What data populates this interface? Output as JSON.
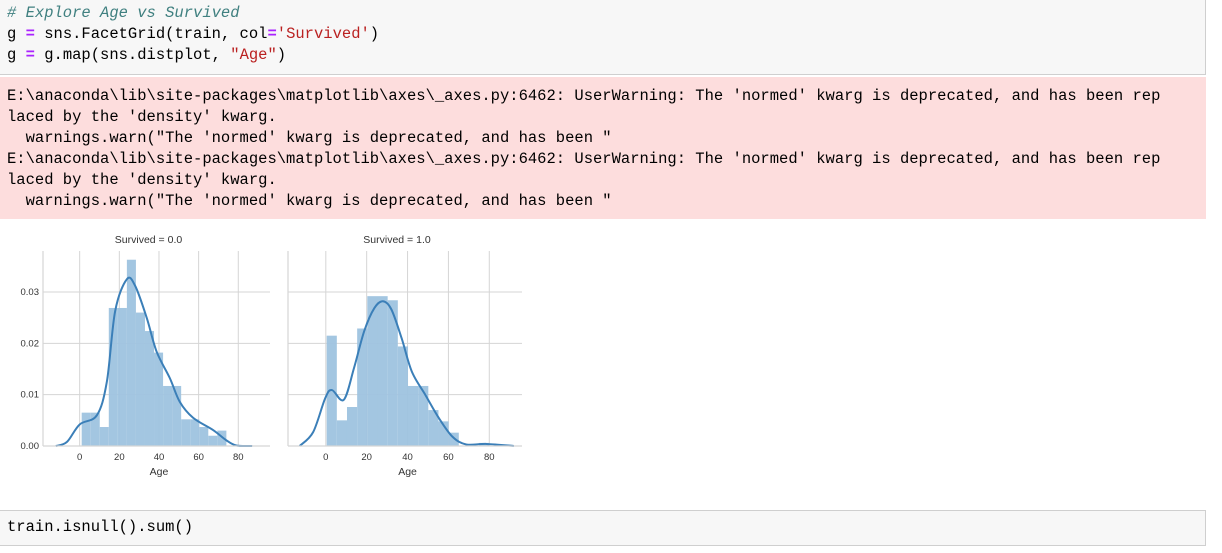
{
  "code_cell": {
    "comment": "# Explore Age vs Survived",
    "line2": {
      "a": "g ",
      "op": "=",
      "b": " sns.FacetGrid(train, col",
      "op2": "=",
      "str": "'Survived'",
      "c": ")"
    },
    "line3": {
      "a": "g ",
      "op": "=",
      "b": " g.map(sns.distplot, ",
      "str": "\"Age\"",
      "c": ")"
    }
  },
  "stderr": {
    "lines": [
      "E:\\anaconda\\lib\\site-packages\\matplotlib\\axes\\_axes.py:6462: UserWarning: The 'normed' kwarg is deprecated, and has been rep",
      "laced by the 'density' kwarg.",
      "  warnings.warn(\"The 'normed' kwarg is deprecated, and has been \"",
      "E:\\anaconda\\lib\\site-packages\\matplotlib\\axes\\_axes.py:6462: UserWarning: The 'normed' kwarg is deprecated, and has been rep",
      "laced by the 'density' kwarg.",
      "  warnings.warn(\"The 'normed' kwarg is deprecated, and has been \""
    ]
  },
  "next_cell": {
    "code": "train.isnull().sum()"
  },
  "colors": {
    "bar": "#9ec3df",
    "kde": "#3b7fb8",
    "grid": "#d5d5d5",
    "stderr_bg": "#fddddd"
  },
  "chart_data": [
    {
      "type": "bar",
      "title": "Survived = 0.0",
      "xlabel": "Age",
      "ylabel": "",
      "xticks": [
        0,
        20,
        40,
        60,
        80
      ],
      "yticks": [
        "0.00",
        "0.01",
        "0.02",
        "0.03"
      ],
      "xlim": [
        -18.5,
        96
      ],
      "ylim": [
        0,
        0.038
      ],
      "grid": true,
      "bin_range": [
        1,
        74
      ],
      "values": [
        0.0065,
        0.0065,
        0.0037,
        0.0269,
        0.0269,
        0.0363,
        0.026,
        0.0224,
        0.0182,
        0.0117,
        0.0117,
        0.0052,
        0.0052,
        0.0037,
        0.002,
        0.003
      ],
      "kde": [
        [
          -12,
          0
        ],
        [
          -6.4,
          0.0008
        ],
        [
          0,
          0.0042
        ],
        [
          8.7,
          0.006
        ],
        [
          13.7,
          0.0125
        ],
        [
          17.9,
          0.0263
        ],
        [
          23.8,
          0.0325
        ],
        [
          28,
          0.0312
        ],
        [
          33.8,
          0.025
        ],
        [
          38.8,
          0.0184
        ],
        [
          45.5,
          0.0132
        ],
        [
          50.5,
          0.0086
        ],
        [
          57.2,
          0.0055
        ],
        [
          67.3,
          0.0031
        ],
        [
          74,
          0.0011
        ],
        [
          79,
          0.0001
        ],
        [
          87,
          0
        ]
      ]
    },
    {
      "type": "bar",
      "title": "Survived = 1.0",
      "xlabel": "Age",
      "ylabel": "",
      "xticks": [
        0,
        20,
        40,
        60,
        80
      ],
      "xlim": [
        -18.5,
        96
      ],
      "ylim": [
        0,
        0.038
      ],
      "grid": true,
      "bin_range": [
        0.42,
        80
      ],
      "values": [
        0.0215,
        0.005,
        0.0076,
        0.0229,
        0.0292,
        0.0292,
        0.0284,
        0.0194,
        0.0117,
        0.0117,
        0.007,
        0.0048,
        0.0026,
        0,
        0,
        0.0006
      ],
      "kde": [
        [
          -12.8,
          0
        ],
        [
          -6.2,
          0.0027
        ],
        [
          -0.3,
          0.0093
        ],
        [
          3,
          0.0109
        ],
        [
          8.8,
          0.009
        ],
        [
          13.8,
          0.0152
        ],
        [
          18.8,
          0.0224
        ],
        [
          23.8,
          0.0269
        ],
        [
          28,
          0.0282
        ],
        [
          32.1,
          0.0266
        ],
        [
          37.1,
          0.021
        ],
        [
          42.1,
          0.0145
        ],
        [
          48.8,
          0.0099
        ],
        [
          55.4,
          0.0054
        ],
        [
          62,
          0.0018
        ],
        [
          68.7,
          0.0003
        ],
        [
          78.7,
          0.0004
        ],
        [
          92,
          0
        ]
      ]
    }
  ]
}
